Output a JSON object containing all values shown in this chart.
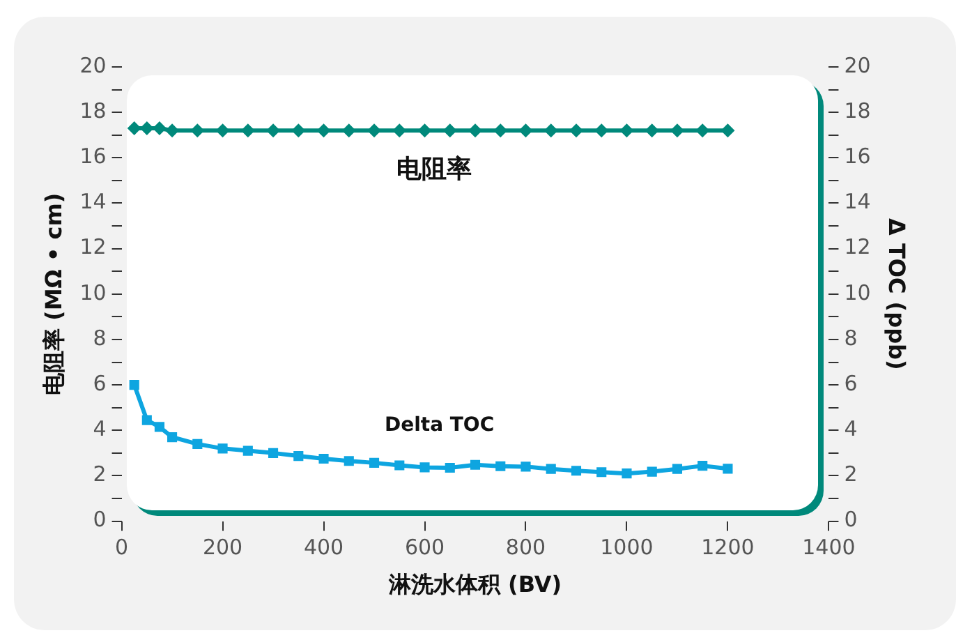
{
  "chart_data": {
    "type": "line",
    "xlabel": "淋洗水体积 (BV)",
    "ylabel": "电阻率 (MΩ • cm)",
    "y2label": "Δ TOC (ppb)",
    "x": [
      25,
      50,
      75,
      100,
      150,
      200,
      250,
      300,
      350,
      400,
      450,
      500,
      550,
      600,
      650,
      700,
      750,
      800,
      850,
      900,
      950,
      1000,
      1050,
      1100,
      1150,
      1200
    ],
    "series": [
      {
        "name": "电阻率",
        "color": "#00897b",
        "marker": "diamond",
        "values": [
          17.3,
          17.3,
          17.3,
          17.2,
          17.2,
          17.2,
          17.2,
          17.2,
          17.2,
          17.2,
          17.2,
          17.2,
          17.2,
          17.2,
          17.2,
          17.2,
          17.2,
          17.2,
          17.2,
          17.2,
          17.2,
          17.2,
          17.2,
          17.2,
          17.2,
          17.2
        ]
      },
      {
        "name": "Delta TOC",
        "color": "#0ea5e0",
        "marker": "square",
        "axis": "y2",
        "values": [
          6.0,
          4.45,
          4.15,
          3.7,
          3.4,
          3.2,
          3.1,
          3.0,
          2.87,
          2.75,
          2.65,
          2.57,
          2.46,
          2.37,
          2.35,
          2.48,
          2.42,
          2.4,
          2.3,
          2.22,
          2.16,
          2.1,
          2.18,
          2.3,
          2.44,
          2.31
        ]
      }
    ],
    "xlim": [
      0,
      1400
    ],
    "xticks": [
      0,
      200,
      400,
      600,
      800,
      1000,
      1200,
      1400
    ],
    "ylim": [
      0,
      20
    ],
    "yticks": [
      0,
      {
        "value": 1,
        "label": null
      },
      2,
      {
        "value": 3,
        "label": null
      },
      4,
      {
        "value": 5,
        "label": null
      },
      6,
      {
        "value": 7,
        "label": null
      },
      8,
      {
        "value": 9,
        "label": null
      },
      10,
      {
        "value": 11,
        "label": null
      },
      12,
      {
        "value": 13,
        "label": null
      },
      14,
      {
        "value": 15,
        "label": null
      },
      16,
      {
        "value": 17,
        "label": null
      },
      18,
      {
        "value": 19,
        "label": null
      },
      20
    ],
    "y2lim": [
      0,
      20
    ],
    "y2ticks": [
      0,
      {
        "value": 1,
        "label": null
      },
      2,
      {
        "value": 3,
        "label": null
      },
      4,
      {
        "value": 5,
        "label": null
      },
      6,
      {
        "value": 7,
        "label": null
      },
      8,
      {
        "value": 9,
        "label": null
      },
      10,
      {
        "value": 11,
        "label": null
      },
      12,
      {
        "value": 13,
        "label": null
      },
      14,
      {
        "value": 15,
        "label": null
      },
      16,
      {
        "value": 17,
        "label": null
      },
      18,
      {
        "value": 19,
        "label": null
      },
      20
    ],
    "grid": false,
    "legend": false,
    "line_style": "solid"
  }
}
